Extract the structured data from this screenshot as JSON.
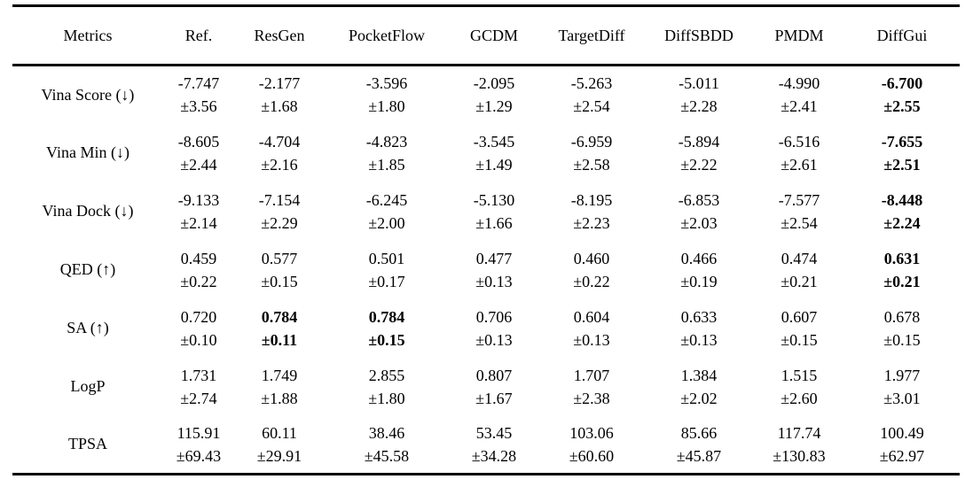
{
  "table": {
    "columns": [
      "Metrics",
      "Ref.",
      "ResGen",
      "PocketFlow",
      "GCDM",
      "TargetDiff",
      "DiffSBDD",
      "PMDM",
      "DiffGui"
    ],
    "rows": [
      {
        "metric": "Vina Score (↓)",
        "cells": [
          {
            "value": "-7.747",
            "std": "±3.56",
            "bold": false
          },
          {
            "value": "-2.177",
            "std": "±1.68",
            "bold": false
          },
          {
            "value": "-3.596",
            "std": "±1.80",
            "bold": false
          },
          {
            "value": "-2.095",
            "std": "±1.29",
            "bold": false
          },
          {
            "value": "-5.263",
            "std": "±2.54",
            "bold": false
          },
          {
            "value": "-5.011",
            "std": "±2.28",
            "bold": false
          },
          {
            "value": "-4.990",
            "std": "±2.41",
            "bold": false
          },
          {
            "value": "-6.700",
            "std": "±2.55",
            "bold": true
          }
        ]
      },
      {
        "metric": "Vina Min (↓)",
        "cells": [
          {
            "value": "-8.605",
            "std": "±2.44",
            "bold": false
          },
          {
            "value": "-4.704",
            "std": "±2.16",
            "bold": false
          },
          {
            "value": "-4.823",
            "std": "±1.85",
            "bold": false
          },
          {
            "value": "-3.545",
            "std": "±1.49",
            "bold": false
          },
          {
            "value": "-6.959",
            "std": "±2.58",
            "bold": false
          },
          {
            "value": "-5.894",
            "std": "±2.22",
            "bold": false
          },
          {
            "value": "-6.516",
            "std": "±2.61",
            "bold": false
          },
          {
            "value": "-7.655",
            "std": "±2.51",
            "bold": true
          }
        ]
      },
      {
        "metric": "Vina Dock (↓)",
        "cells": [
          {
            "value": "-9.133",
            "std": "±2.14",
            "bold": false
          },
          {
            "value": "-7.154",
            "std": "±2.29",
            "bold": false
          },
          {
            "value": "-6.245",
            "std": "±2.00",
            "bold": false
          },
          {
            "value": "-5.130",
            "std": "±1.66",
            "bold": false
          },
          {
            "value": "-8.195",
            "std": "±2.23",
            "bold": false
          },
          {
            "value": "-6.853",
            "std": "±2.03",
            "bold": false
          },
          {
            "value": "-7.577",
            "std": "±2.54",
            "bold": false
          },
          {
            "value": "-8.448",
            "std": "±2.24",
            "bold": true
          }
        ]
      },
      {
        "metric": "QED (↑)",
        "cells": [
          {
            "value": "0.459",
            "std": "±0.22",
            "bold": false
          },
          {
            "value": "0.577",
            "std": "±0.15",
            "bold": false
          },
          {
            "value": "0.501",
            "std": "±0.17",
            "bold": false
          },
          {
            "value": "0.477",
            "std": "±0.13",
            "bold": false
          },
          {
            "value": "0.460",
            "std": "±0.22",
            "bold": false
          },
          {
            "value": "0.466",
            "std": "±0.19",
            "bold": false
          },
          {
            "value": "0.474",
            "std": "±0.21",
            "bold": false
          },
          {
            "value": "0.631",
            "std": "±0.21",
            "bold": true
          }
        ]
      },
      {
        "metric": "SA (↑)",
        "cells": [
          {
            "value": "0.720",
            "std": "±0.10",
            "bold": false
          },
          {
            "value": "0.784",
            "std": "±0.11",
            "bold": true
          },
          {
            "value": "0.784",
            "std": "±0.15",
            "bold": true
          },
          {
            "value": "0.706",
            "std": "±0.13",
            "bold": false
          },
          {
            "value": "0.604",
            "std": "±0.13",
            "bold": false
          },
          {
            "value": "0.633",
            "std": "±0.13",
            "bold": false
          },
          {
            "value": "0.607",
            "std": "±0.15",
            "bold": false
          },
          {
            "value": "0.678",
            "std": "±0.15",
            "bold": false
          }
        ]
      },
      {
        "metric": "LogP",
        "cells": [
          {
            "value": "1.731",
            "std": "±2.74",
            "bold": false
          },
          {
            "value": "1.749",
            "std": "±1.88",
            "bold": false
          },
          {
            "value": "2.855",
            "std": "±1.80",
            "bold": false
          },
          {
            "value": "0.807",
            "std": "±1.67",
            "bold": false
          },
          {
            "value": "1.707",
            "std": "±2.38",
            "bold": false
          },
          {
            "value": "1.384",
            "std": "±2.02",
            "bold": false
          },
          {
            "value": "1.515",
            "std": "±2.60",
            "bold": false
          },
          {
            "value": "1.977",
            "std": "±3.01",
            "bold": false
          }
        ]
      },
      {
        "metric": "TPSA",
        "cells": [
          {
            "value": "115.91",
            "std": "±69.43",
            "bold": false
          },
          {
            "value": "60.11",
            "std": "±29.91",
            "bold": false
          },
          {
            "value": "38.46",
            "std": "±45.58",
            "bold": false
          },
          {
            "value": "53.45",
            "std": "±34.28",
            "bold": false
          },
          {
            "value": "103.06",
            "std": "±60.60",
            "bold": false
          },
          {
            "value": "85.66",
            "std": "±45.87",
            "bold": false
          },
          {
            "value": "117.74",
            "std": "±130.83",
            "bold": false
          },
          {
            "value": "100.49",
            "std": "±62.97",
            "bold": false
          }
        ]
      }
    ]
  }
}
